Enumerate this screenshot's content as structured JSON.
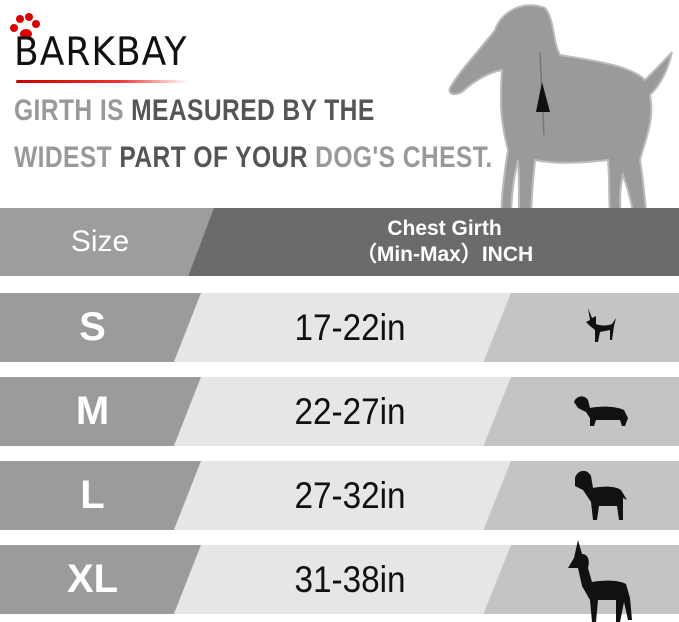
{
  "brand": {
    "name": "BARKBAY",
    "accent": "#cc0000"
  },
  "headline": {
    "line1": [
      {
        "t": "GIRTH IS ",
        "tone": "light"
      },
      {
        "t": "MEASURED BY THE",
        "tone": "dark"
      }
    ],
    "line2": [
      {
        "t": "WIDEST ",
        "tone": "light"
      },
      {
        "t": "PART OF YOUR ",
        "tone": "dark"
      },
      {
        "t": "DOG'S CHEST.",
        "tone": "light"
      }
    ]
  },
  "table": {
    "header": {
      "size": "Size",
      "girth_line1": "Chest Girth",
      "girth_line2": "（Min-Max）INCH"
    },
    "rows": [
      {
        "size": "S",
        "girth": "17-22in",
        "icon": "chihuahua-icon"
      },
      {
        "size": "M",
        "girth": "22-27in",
        "icon": "dachshund-icon"
      },
      {
        "size": "L",
        "girth": "27-32in",
        "icon": "labrador-icon"
      },
      {
        "size": "XL",
        "girth": "31-38in",
        "icon": "great-dane-icon"
      }
    ]
  },
  "colors": {
    "size_cell": "#9b9b9b",
    "girth_cell": "#e6e6e6",
    "icon_cell": "#c4c4c4",
    "header_left": "#9d9d9d",
    "header_right": "#6b6b6b"
  }
}
